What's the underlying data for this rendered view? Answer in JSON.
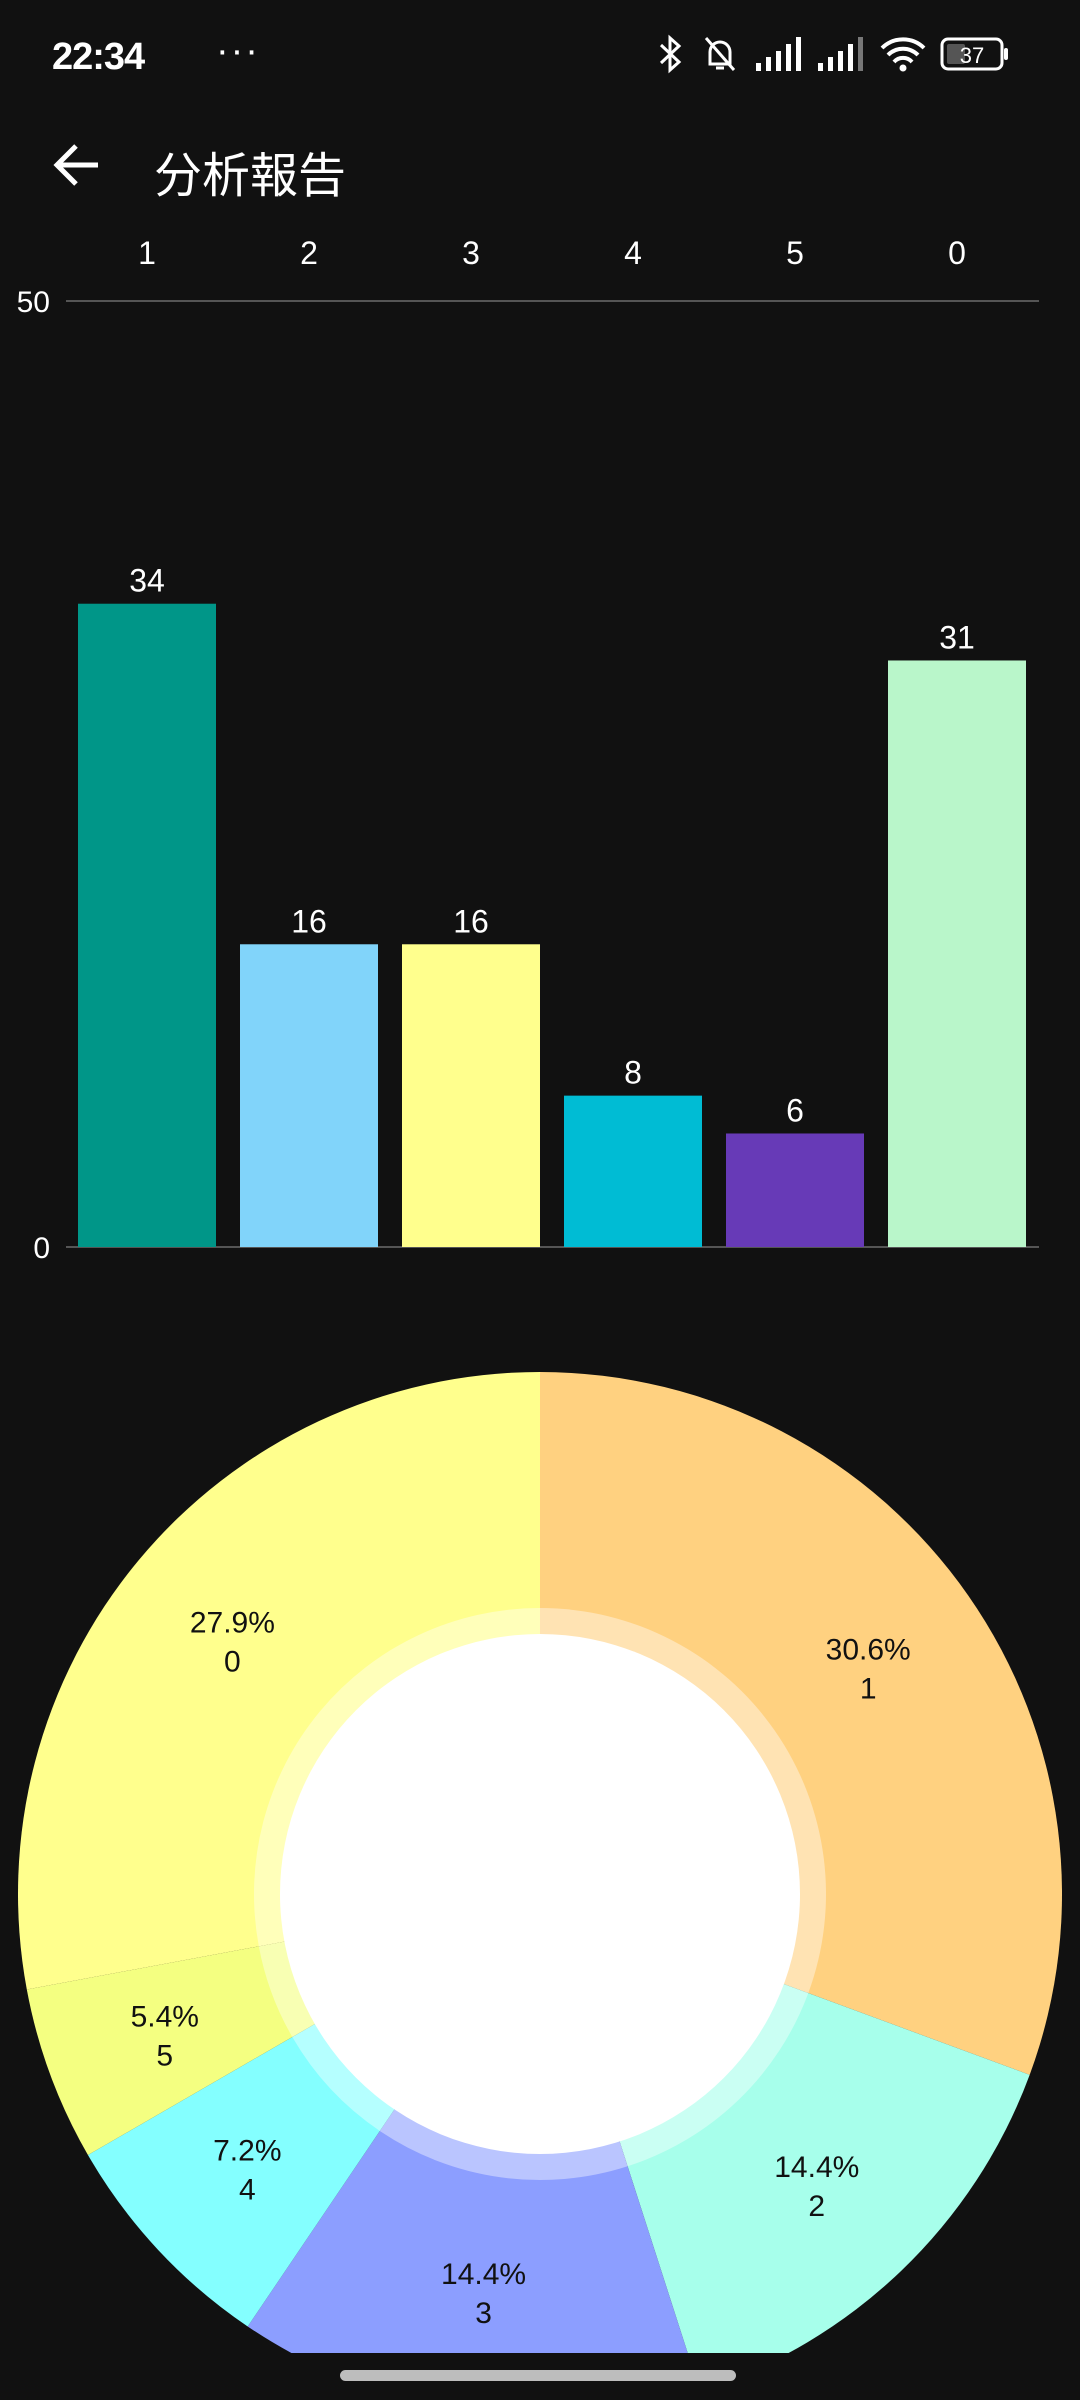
{
  "status_bar": {
    "time": "22:34",
    "more": "···",
    "battery": "37",
    "icons": [
      "location-icon",
      "bluetooth-icon",
      "silent-bell-icon",
      "signal-icon",
      "signal-icon",
      "wifi-icon",
      "battery-icon"
    ]
  },
  "header": {
    "title": "分析報告",
    "back_icon": "arrow-left-icon"
  },
  "chart_data": [
    {
      "type": "bar",
      "categories": [
        "1",
        "2",
        "3",
        "4",
        "5",
        "0"
      ],
      "values": [
        34,
        16,
        16,
        8,
        6,
        31
      ],
      "colors": [
        "#009688",
        "#81D4FA",
        "#FFFF8D",
        "#00BCD4",
        "#673AB7",
        "#B9F6CA"
      ],
      "ylim": [
        0,
        50
      ],
      "yticks": [
        "0",
        "50"
      ],
      "x_axis_position": "top",
      "grid": false,
      "data_labels": true
    },
    {
      "type": "pie",
      "donut": true,
      "labels": [
        "1",
        "2",
        "3",
        "4",
        "5",
        "0"
      ],
      "values": [
        34,
        16,
        16,
        8,
        6,
        31
      ],
      "percent_labels": [
        "30.6%",
        "14.4%",
        "14.4%",
        "7.2%",
        "5.4%",
        "27.9%"
      ],
      "colors": [
        "#FFD180",
        "#A7FFEB",
        "#8C9EFF",
        "#84FFFF",
        "#F4FF81",
        "#FFFF8D"
      ],
      "start": "top",
      "direction": "clockwise",
      "hole_color": "#FFFFFF"
    }
  ]
}
